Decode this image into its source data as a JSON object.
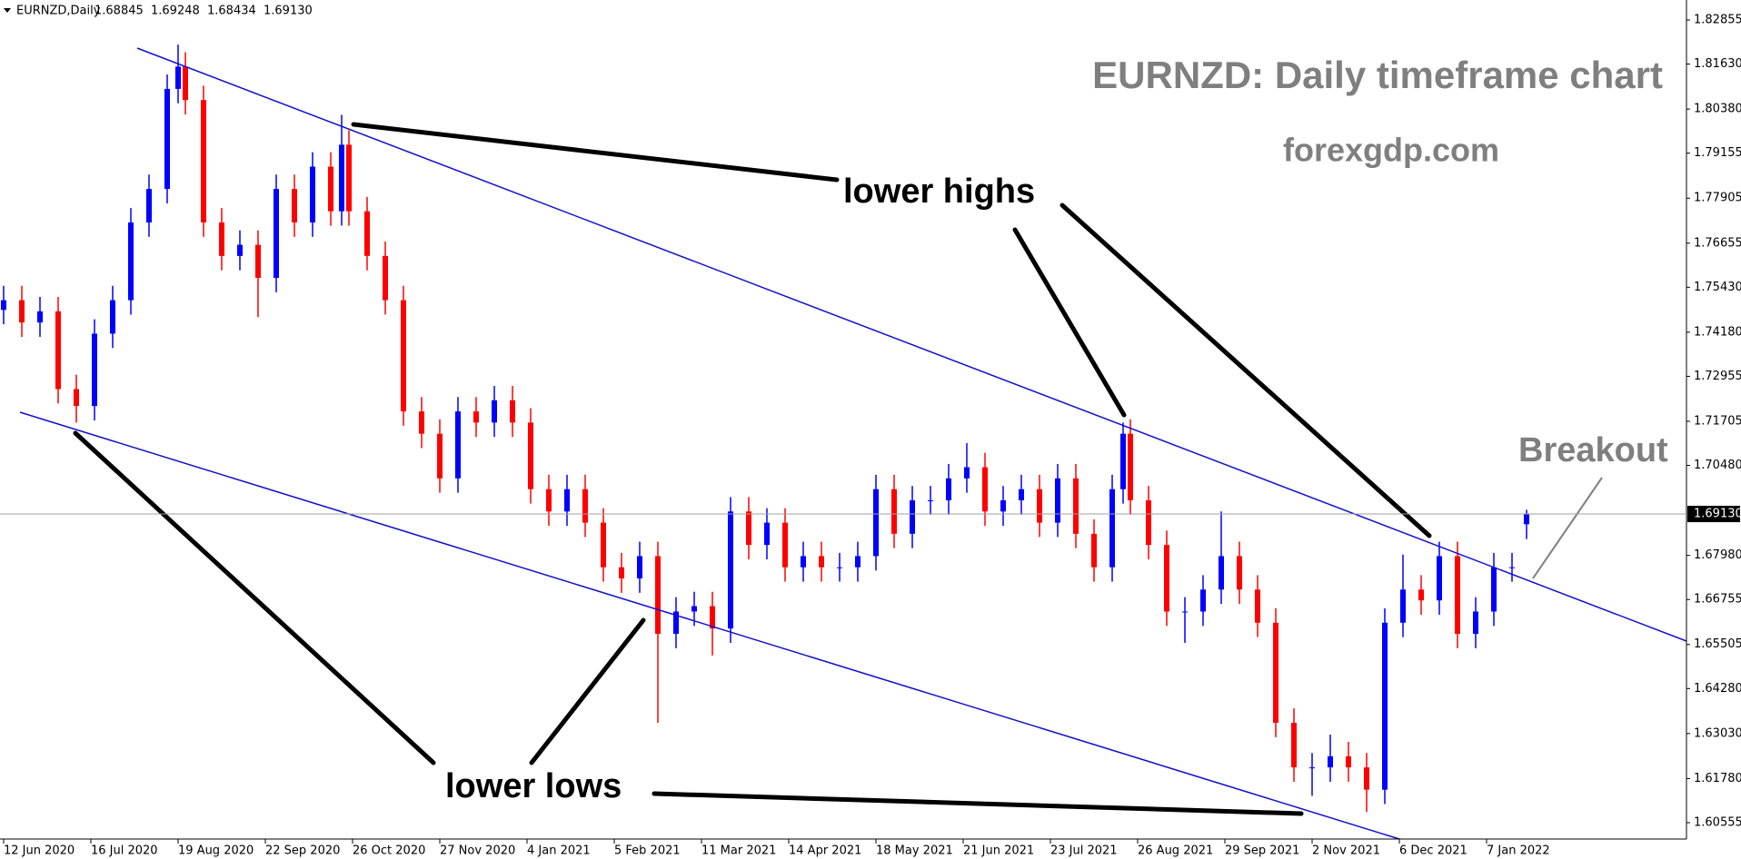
{
  "chart_data": {
    "type": "candlestick",
    "header": "EURNZD,Daily",
    "title": "EURNZD: Daily timeframe chart",
    "subtitle": "forexgdp.com",
    "annotations": [
      "lower highs",
      "lower lows",
      "Breakout"
    ],
    "up_color": "#0000ff",
    "down_color": "#ff0000",
    "xlim": [
      -1,
      463
    ],
    "xticks": [
      {
        "value": 0,
        "label": "12 Jun 2020"
      },
      {
        "value": 24,
        "label": "16 Jul 2020"
      },
      {
        "value": 48,
        "label": "19 Aug 2020"
      },
      {
        "value": 72,
        "label": "22 Sep 2020"
      },
      {
        "value": 96,
        "label": "26 Oct 2020"
      },
      {
        "value": 120,
        "label": "27 Nov 2020"
      },
      {
        "value": 144,
        "label": "4 Jan 2021"
      },
      {
        "value": 168,
        "label": "5 Feb 2021"
      },
      {
        "value": 192,
        "label": "11 Mar 2021"
      },
      {
        "value": 216,
        "label": "14 Apr 2021"
      },
      {
        "value": 240,
        "label": "18 May 2021"
      },
      {
        "value": 264,
        "label": "21 Jun 2021"
      },
      {
        "value": 288,
        "label": "23 Jul 2021"
      },
      {
        "value": 312,
        "label": "26 Aug 2021"
      },
      {
        "value": 336,
        "label": "29 Sep 2021"
      },
      {
        "value": 360,
        "label": "2 Nov 2021"
      },
      {
        "value": 384,
        "label": "6 Dec 2021"
      },
      {
        "value": 408,
        "label": "7 Jan 2022"
      }
    ],
    "ylim": [
      1.601,
      1.8341
    ],
    "yticks": [
      1.82855,
      {
        "value": 1.8163,
        "label": "1.81630"
      },
      {
        "value": 1.8038,
        "label": "1.80380"
      },
      1.79155,
      1.77905,
      1.76655,
      {
        "value": 1.7543,
        "label": "1.75430"
      },
      {
        "value": 1.7418,
        "label": "1.74180"
      },
      1.72955,
      1.71705,
      {
        "value": 1.7048,
        "label": "1.70480"
      },
      {
        "value": 1.6798,
        "label": "1.67980"
      },
      1.66755,
      1.65505,
      {
        "value": 1.6428,
        "label": "1.64280"
      },
      {
        "value": 1.6303,
        "label": "1.63030"
      },
      {
        "value": 1.6178,
        "label": "1.61780"
      },
      1.60555
    ],
    "current_price": {
      "value": 1.6913,
      "label": "1.69130"
    },
    "x": [
      0,
      5,
      10,
      15,
      20,
      25,
      30,
      35,
      40,
      45,
      48,
      50,
      55,
      60,
      65,
      70,
      75,
      80,
      85,
      90,
      93,
      95,
      100,
      105,
      110,
      115,
      120,
      125,
      130,
      135,
      140,
      145,
      150,
      155,
      160,
      165,
      170,
      175,
      180,
      185,
      190,
      195,
      200,
      205,
      210,
      215,
      220,
      225,
      230,
      235,
      240,
      245,
      250,
      255,
      260,
      265,
      270,
      275,
      280,
      285,
      290,
      295,
      300,
      305,
      308,
      310,
      315,
      320,
      325,
      330,
      335,
      340,
      345,
      350,
      355,
      360,
      365,
      370,
      375,
      380,
      385,
      390,
      395,
      400,
      405,
      410,
      415,
      419
    ],
    "open": [
      1.748,
      1.7507,
      1.7445,
      1.7476,
      1.726,
      1.7213,
      1.7414,
      1.7507,
      1.7723,
      1.7816,
      1.8094,
      1.8156,
      1.8063,
      1.7723,
      1.763,
      1.7661,
      1.7569,
      1.7816,
      1.7723,
      1.7878,
      1.7754,
      1.7939,
      1.7754,
      1.763,
      1.7507,
      1.7198,
      1.7136,
      1.7012,
      1.7198,
      1.7167,
      1.7229,
      1.7167,
      1.6982,
      1.692,
      1.6982,
      1.6889,
      1.6765,
      1.6734,
      1.6796,
      1.658,
      1.6642,
      1.6657,
      1.6595,
      1.692,
      1.6827,
      1.6889,
      1.6765,
      1.6796,
      1.6765,
      1.6765,
      1.6796,
      1.6982,
      1.6858,
      1.6951,
      1.6951,
      1.7012,
      1.7043,
      1.692,
      1.6951,
      1.6982,
      1.6889,
      1.7012,
      1.6858,
      1.6765,
      1.6982,
      1.7136,
      1.6951,
      1.6827,
      1.6642,
      1.6642,
      1.6703,
      1.6796,
      1.6703,
      1.6611,
      1.6333,
      1.6209,
      1.6209,
      1.624,
      1.6209,
      1.6147,
      1.6611,
      1.6703,
      1.6673,
      1.6796,
      1.658,
      1.6642,
      1.6765,
      1.68845
    ],
    "high": [
      1.7547,
      1.7547,
      1.7516,
      1.7516,
      1.73,
      1.7454,
      1.7547,
      1.7763,
      1.7856,
      1.8134,
      1.8217,
      1.8196,
      1.8103,
      1.7763,
      1.7701,
      1.7701,
      1.7856,
      1.7856,
      1.7918,
      1.7918,
      1.8022,
      1.7979,
      1.7794,
      1.767,
      1.7547,
      1.7238,
      1.7176,
      1.7238,
      1.7238,
      1.7269,
      1.7269,
      1.7207,
      1.7022,
      1.7022,
      1.7022,
      1.6929,
      1.6805,
      1.6836,
      1.6836,
      1.6682,
      1.6697,
      1.6697,
      1.696,
      1.696,
      1.6929,
      1.6929,
      1.6836,
      1.6836,
      1.6805,
      1.6836,
      1.7022,
      1.7022,
      1.6991,
      1.6991,
      1.7052,
      1.711,
      1.7083,
      1.6991,
      1.7022,
      1.7022,
      1.7052,
      1.7052,
      1.6898,
      1.7022,
      1.7167,
      1.7176,
      1.6991,
      1.6867,
      1.6682,
      1.6743,
      1.692,
      1.6836,
      1.6743,
      1.6651,
      1.6373,
      1.6249,
      1.63,
      1.628,
      1.6249,
      1.6651,
      1.68,
      1.6743,
      1.6836,
      1.6836,
      1.6682,
      1.6805,
      1.6805,
      1.69248
    ],
    "low": [
      1.744,
      1.7405,
      1.7405,
      1.722,
      1.7167,
      1.7173,
      1.7374,
      1.7467,
      1.7683,
      1.7776,
      1.8054,
      1.8023,
      1.7683,
      1.759,
      1.759,
      1.746,
      1.7529,
      1.7683,
      1.7683,
      1.7714,
      1.7714,
      1.7714,
      1.759,
      1.7467,
      1.7158,
      1.7096,
      1.6972,
      1.6972,
      1.7127,
      1.7127,
      1.7127,
      1.6942,
      1.688,
      1.688,
      1.6849,
      1.6725,
      1.6694,
      1.6694,
      1.6333,
      1.654,
      1.6602,
      1.652,
      1.6555,
      1.6787,
      1.6787,
      1.6725,
      1.6725,
      1.6725,
      1.6725,
      1.6725,
      1.6756,
      1.6818,
      1.6818,
      1.6911,
      1.6911,
      1.6972,
      1.688,
      1.688,
      1.6911,
      1.6849,
      1.6849,
      1.6818,
      1.6725,
      1.6725,
      1.6942,
      1.6911,
      1.6787,
      1.6602,
      1.6555,
      1.6602,
      1.6663,
      1.6663,
      1.6571,
      1.6293,
      1.6169,
      1.613,
      1.6169,
      1.6169,
      1.6085,
      1.6107,
      1.6571,
      1.6633,
      1.6633,
      1.654,
      1.654,
      1.6602,
      1.6725,
      1.68434
    ],
    "close": [
      1.7507,
      1.7445,
      1.7476,
      1.726,
      1.7213,
      1.7414,
      1.7507,
      1.7723,
      1.7816,
      1.8094,
      1.8156,
      1.8063,
      1.7723,
      1.763,
      1.7661,
      1.7569,
      1.7816,
      1.7723,
      1.7878,
      1.7754,
      1.7939,
      1.7754,
      1.763,
      1.7507,
      1.7198,
      1.7136,
      1.7012,
      1.7198,
      1.7167,
      1.7229,
      1.7167,
      1.6982,
      1.692,
      1.6982,
      1.6889,
      1.6765,
      1.6734,
      1.6796,
      1.658,
      1.6642,
      1.6657,
      1.6595,
      1.692,
      1.6827,
      1.6889,
      1.6765,
      1.6796,
      1.6765,
      1.6765,
      1.6796,
      1.6982,
      1.6858,
      1.6951,
      1.6951,
      1.7012,
      1.7043,
      1.692,
      1.6951,
      1.6982,
      1.6889,
      1.7012,
      1.6858,
      1.6765,
      1.6982,
      1.7136,
      1.6951,
      1.6827,
      1.6642,
      1.6642,
      1.6703,
      1.6796,
      1.6703,
      1.6611,
      1.6333,
      1.6209,
      1.6209,
      1.624,
      1.6209,
      1.6147,
      1.6611,
      1.6703,
      1.6673,
      1.6796,
      1.658,
      1.6642,
      1.6765,
      1.6765,
      1.6913
    ]
  }
}
